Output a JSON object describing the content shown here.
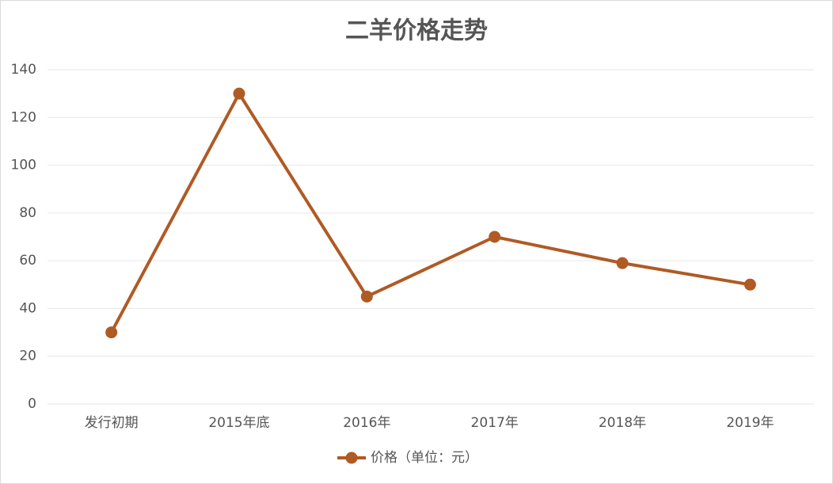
{
  "chart_data": {
    "type": "line",
    "title": "二羊价格走势",
    "categories": [
      "发行初期",
      "2015年底",
      "2016年",
      "2017年",
      "2018年",
      "2019年"
    ],
    "series": [
      {
        "name": "价格（单位：元）",
        "color": "#b05a24",
        "values": [
          30,
          130,
          45,
          70,
          59,
          50
        ]
      }
    ],
    "ylim": [
      0,
      140
    ],
    "yticks": [
      0,
      20,
      40,
      60,
      80,
      100,
      120,
      140
    ],
    "grid": true,
    "legend": "bottom"
  }
}
